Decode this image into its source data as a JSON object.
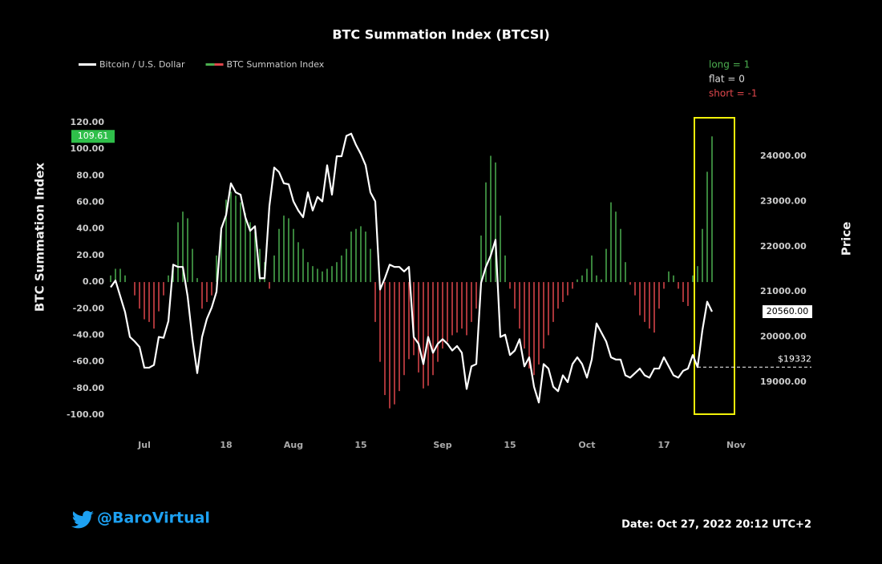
{
  "chart_data": {
    "type": "bar-line",
    "title": "BTC Summation Index (BTCSI)",
    "y_label": "BTC Summation Index",
    "y2_label": "Price",
    "categories": [
      null,
      null,
      null,
      null,
      null,
      null,
      null,
      "Jul",
      null,
      null,
      null,
      null,
      null,
      null,
      null,
      null,
      null,
      null,
      null,
      null,
      null,
      null,
      null,
      null,
      "18",
      null,
      null,
      null,
      null,
      null,
      null,
      null,
      null,
      null,
      null,
      null,
      null,
      null,
      "Aug",
      null,
      null,
      null,
      null,
      null,
      null,
      null,
      null,
      null,
      null,
      null,
      null,
      null,
      "15",
      null,
      null,
      null,
      null,
      null,
      null,
      null,
      null,
      null,
      null,
      null,
      null,
      null,
      null,
      null,
      null,
      "Sep",
      null,
      null,
      null,
      null,
      null,
      null,
      null,
      null,
      null,
      null,
      null,
      null,
      null,
      "15",
      null,
      null,
      null,
      null,
      null,
      null,
      null,
      null,
      null,
      null,
      null,
      null,
      null,
      null,
      null,
      "Oct",
      null,
      null,
      null,
      null,
      null,
      null,
      null,
      null,
      null,
      null,
      null,
      null,
      null,
      null,
      null,
      "17",
      null,
      null,
      null,
      null,
      null,
      null,
      null,
      null,
      null,
      null,
      null,
      null,
      null,
      null,
      "Nov"
    ],
    "series": [
      {
        "name": "BTC Summation Index",
        "type": "bar",
        "color": "#4caf50",
        "negative_color": "#e0474c",
        "values": [
          5,
          10,
          10,
          5,
          0,
          -10,
          -20,
          -28,
          -30,
          -35,
          -22,
          -10,
          5,
          10,
          45,
          53,
          48,
          25,
          3,
          -20,
          -15,
          -10,
          20,
          38,
          62,
          68,
          65,
          60,
          52,
          45,
          38,
          25,
          15,
          -5,
          20,
          40,
          50,
          48,
          40,
          30,
          25,
          15,
          12,
          10,
          8,
          10,
          12,
          15,
          20,
          25,
          38,
          40,
          42,
          38,
          25,
          -30,
          -60,
          -85,
          -95,
          -92,
          -82,
          -70,
          -58,
          -55,
          -68,
          -80,
          -78,
          -70,
          -60,
          -50,
          -45,
          -40,
          -38,
          -35,
          -40,
          -30,
          -20,
          35,
          75,
          95,
          90,
          50,
          20,
          -5,
          -20,
          -35,
          -50,
          -65,
          -70,
          -62,
          -50,
          -40,
          -30,
          -20,
          -15,
          -10,
          -5,
          2,
          5,
          10,
          20,
          5,
          2,
          25,
          60,
          53,
          40,
          15,
          -2,
          -10,
          -25,
          -30,
          -35,
          -38,
          -20,
          -5,
          8,
          5,
          -5,
          -15,
          -18,
          5,
          12,
          40,
          83,
          109.61,
          null,
          null,
          null,
          null,
          null
        ]
      },
      {
        "name": "Bitcoin / U.S. Dollar",
        "type": "line",
        "axis": "y2",
        "color": "#ffffff",
        "values": [
          21100,
          21250,
          20900,
          20550,
          20000,
          19900,
          19780,
          19320,
          19320,
          19380,
          20000,
          19980,
          20350,
          21600,
          21550,
          21550,
          20900,
          19950,
          19200,
          20000,
          20400,
          20650,
          21000,
          22400,
          22700,
          23400,
          23200,
          23150,
          22650,
          22350,
          22450,
          21300,
          21300,
          22900,
          23750,
          23650,
          23400,
          23380,
          23000,
          22800,
          22650,
          23200,
          22800,
          23100,
          23000,
          23800,
          23150,
          24000,
          24000,
          24450,
          24500,
          24250,
          24050,
          23800,
          23200,
          23000,
          21050,
          21300,
          21600,
          21550,
          21550,
          21450,
          21550,
          20000,
          19850,
          19400,
          20000,
          19650,
          19850,
          19950,
          19850,
          19700,
          19800,
          19650,
          18850,
          19350,
          19400,
          21200,
          21550,
          21800,
          22150,
          20000,
          20050,
          19600,
          19700,
          19950,
          19350,
          19550,
          18900,
          18550,
          19400,
          19300,
          18900,
          18800,
          19150,
          19000,
          19400,
          19550,
          19400,
          19100,
          19500,
          20300,
          20100,
          19900,
          19550,
          19500,
          19500,
          19150,
          19100,
          19200,
          19300,
          19150,
          19100,
          19300,
          19300,
          19550,
          19350,
          19150,
          19100,
          19250,
          19300,
          19600,
          19332,
          20150,
          20780,
          20560,
          null,
          null,
          null,
          null,
          null
        ]
      }
    ],
    "ylim": [
      -100,
      120
    ],
    "yticks": [
      {
        "value": -100,
        "label": "-100.00"
      },
      {
        "value": -80,
        "label": "-80.00"
      },
      {
        "value": -60,
        "label": "-60.00"
      },
      {
        "value": -40,
        "label": "-40.00"
      },
      {
        "value": -20,
        "label": "-20.00"
      },
      {
        "value": 0,
        "label": "0.00"
      },
      {
        "value": 20,
        "label": "20.00"
      },
      {
        "value": 40,
        "label": "40.00"
      },
      {
        "value": 60,
        "label": "60.00"
      },
      {
        "value": 80,
        "label": "80.00"
      },
      {
        "value": 100,
        "label": "100.00"
      },
      {
        "value": 120,
        "label": "120.00"
      }
    ],
    "y2lim": [
      18273,
      24745
    ],
    "y2ticks": [
      {
        "value": 19000,
        "label": "19000.00"
      },
      {
        "value": 20000,
        "label": "20000.00"
      },
      {
        "value": 21000,
        "label": "21000.00"
      },
      {
        "value": 22000,
        "label": "22000.00"
      },
      {
        "value": 23000,
        "label": "23000.00"
      },
      {
        "value": 24000,
        "label": "24000.00"
      }
    ],
    "price_label": {
      "value": 20560,
      "label": "20560.00"
    },
    "level_annotation": {
      "value": 19332,
      "label": "$19332"
    },
    "notes": [
      {
        "text": "long = 1",
        "color": "#4caf50"
      },
      {
        "text": "flat = 0",
        "color": "#dddddd"
      },
      {
        "text": "short = -1",
        "color": "#e0474c"
      }
    ],
    "grid": false
  },
  "footer": {
    "handle": "@BaroVirtual",
    "date": "Date: Oct 27, 2022 20:12 UTC+2"
  }
}
